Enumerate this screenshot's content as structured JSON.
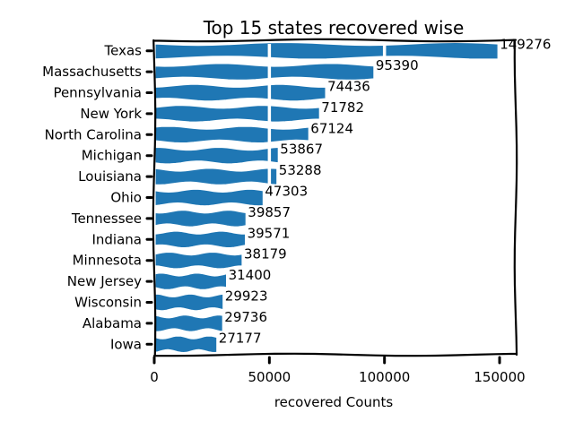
{
  "chart_data": {
    "type": "bar",
    "orientation": "horizontal",
    "title": "Top 15 states recovered wise",
    "xlabel": "recovered Counts",
    "ylabel": "",
    "xlim": [
      0,
      157000
    ],
    "x_ticks": [
      0,
      50000,
      100000,
      150000
    ],
    "x_tick_labels": [
      "0",
      "50000",
      "100000",
      "150000"
    ],
    "grid": false,
    "legend": "none",
    "bar_color": "#1f77b4",
    "categories": [
      "Texas",
      "Massachusetts",
      "Pennsylvania",
      "New York",
      "North Carolina",
      "Michigan",
      "Louisiana",
      "Ohio",
      "Tennessee",
      "Indiana",
      "Minnesota",
      "New Jersey",
      "Wisconsin",
      "Alabama",
      "Iowa"
    ],
    "values": [
      149276,
      95390,
      74436,
      71782,
      67124,
      53867,
      53288,
      47303,
      39857,
      39571,
      38179,
      31400,
      29923,
      29736,
      27177
    ],
    "data_labels": [
      "149276",
      "95390",
      "74436",
      "71782",
      "67124",
      "53867",
      "53288",
      "47303",
      "39857",
      "39571",
      "38179",
      "31400",
      "29923",
      "29736",
      "27177"
    ]
  }
}
